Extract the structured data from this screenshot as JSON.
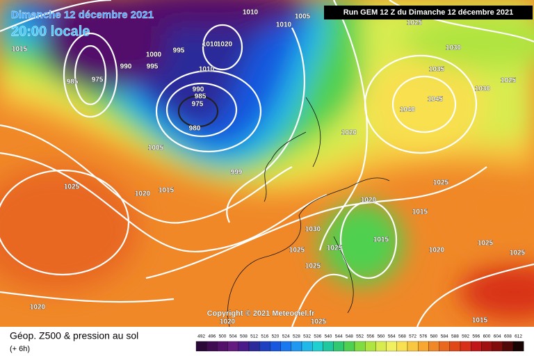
{
  "header": {
    "date": "Dimanche 12 décembre 2021",
    "time": "20:00 locale",
    "run": "Run GEM 12 Z du Dimanche 12 décembre 2021"
  },
  "copyright": "Copyright © 2021 Meteociel.fr",
  "footer": {
    "title": "Géop. Z500 & pression au sol",
    "lead": "(+ 6h)"
  },
  "isobar_labels": [
    "1005",
    "1010",
    "1010",
    "1025",
    "1030",
    "1035",
    "1030",
    "1025",
    "1045",
    "1040",
    "1020",
    "1015",
    "990",
    "1000",
    "995",
    "995",
    "975",
    "985",
    "1010",
    "1020",
    "1010",
    "990",
    "985",
    "975",
    "980",
    "1005",
    "999",
    "1020",
    "1015",
    "1025",
    "1025",
    "1020",
    "1015",
    "1030",
    "1025",
    "1025",
    "1015",
    "1020",
    "1025",
    "1025",
    "1025",
    "1020",
    "1020",
    "1025",
    "1015"
  ],
  "scale": [
    492,
    496,
    500,
    504,
    508,
    512,
    516,
    520,
    524,
    528,
    532,
    536,
    540,
    544,
    548,
    552,
    556,
    560,
    564,
    568,
    572,
    576,
    580,
    584,
    588,
    592,
    596,
    600,
    604,
    608,
    612
  ],
  "scale_colors": [
    "#2a0838",
    "#3f0c52",
    "#53106a",
    "#651a80",
    "#4a1a8a",
    "#2c2a9a",
    "#1e3fc0",
    "#1858e0",
    "#1a78f0",
    "#1e98f0",
    "#20b8e8",
    "#20d0d0",
    "#20c8a0",
    "#30c870",
    "#50d050",
    "#80dc40",
    "#b0e440",
    "#d8ec50",
    "#f0f060",
    "#f8e050",
    "#f8c840",
    "#f8a830",
    "#f08828",
    "#e86820",
    "#e04818",
    "#d83018",
    "#c01818",
    "#a01010",
    "#800c0c",
    "#500808",
    "#180404"
  ]
}
